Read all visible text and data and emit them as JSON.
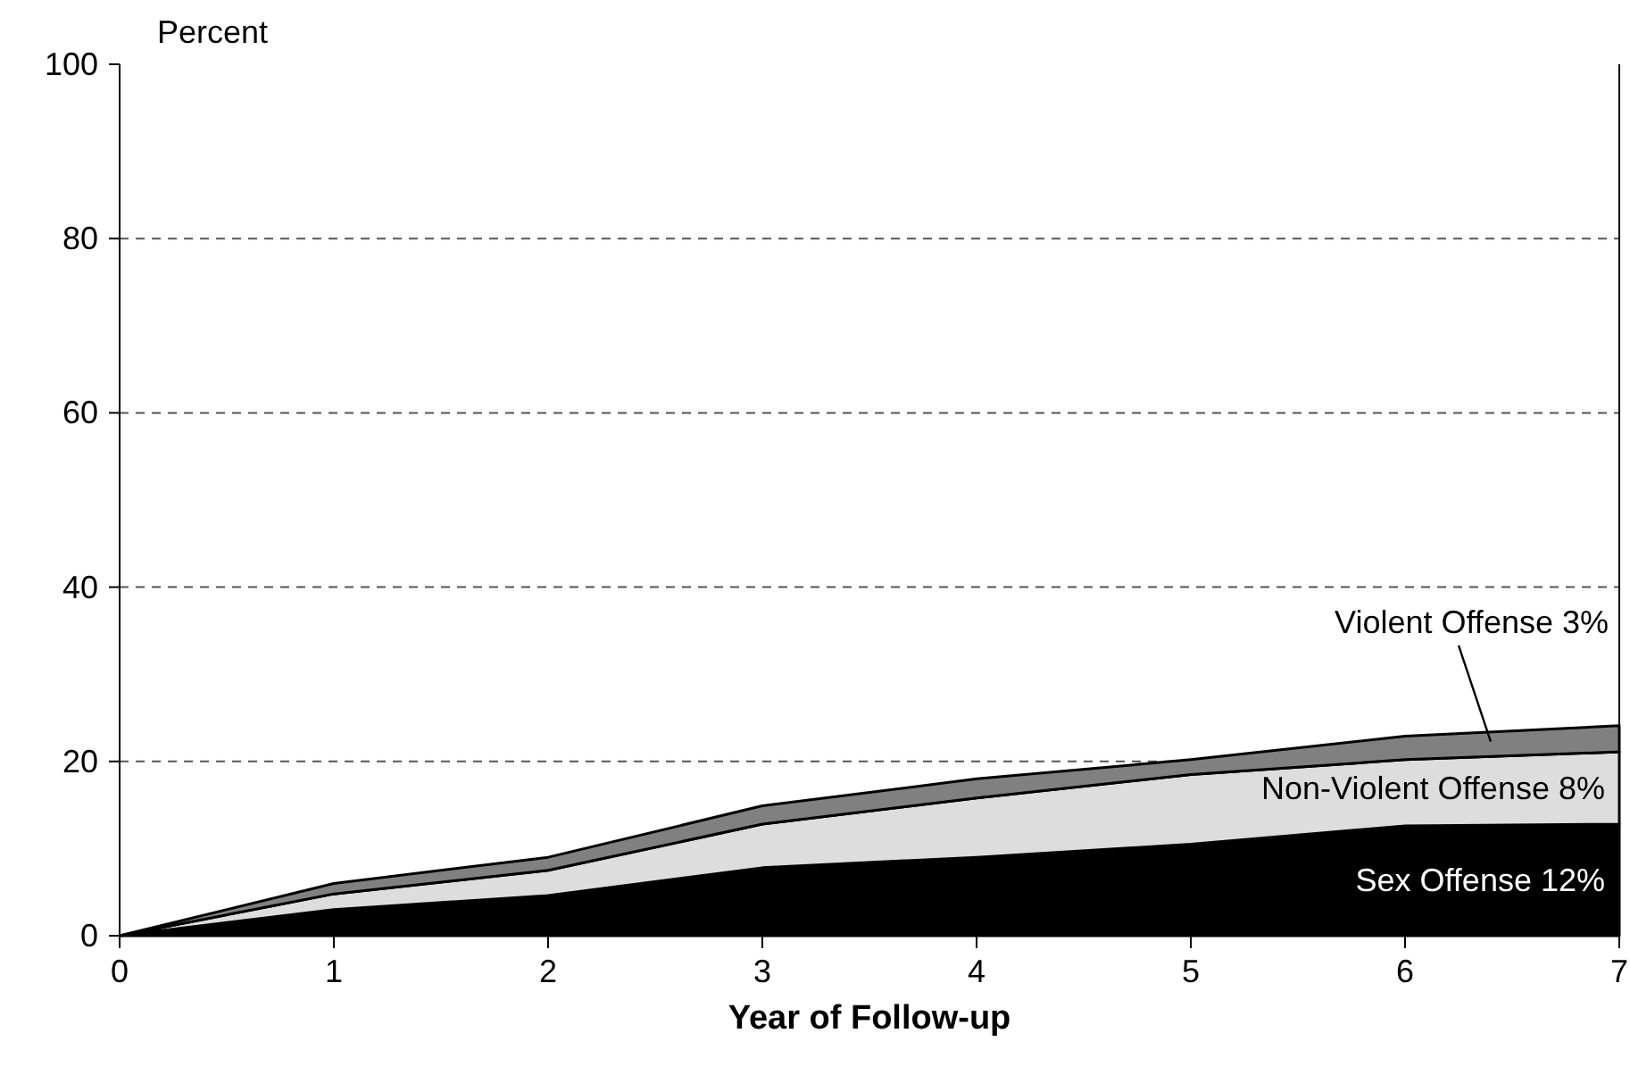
{
  "chart_data": {
    "type": "area",
    "stacked": true,
    "ylabel": "Percent",
    "xlabel": "Year of Follow-up",
    "x": [
      0,
      1,
      2,
      3,
      4,
      5,
      6,
      7
    ],
    "xlim": [
      0,
      7
    ],
    "xticks": [
      0,
      1,
      2,
      3,
      4,
      5,
      6,
      7
    ],
    "ylim": [
      0,
      100
    ],
    "yticks": [
      0,
      20,
      40,
      60,
      80,
      100
    ],
    "grid": "y",
    "series": [
      {
        "name": "Sex Offense 12%",
        "color": "#000000",
        "values": [
          0,
          3,
          4.6,
          7.8,
          9,
          10.5,
          12.6,
          12.8
        ]
      },
      {
        "name": "Non-Violent Offense 8%",
        "color": "#dddddd",
        "values": [
          0,
          1.8,
          2.9,
          5.0,
          6.8,
          8.0,
          7.6,
          8.3
        ]
      },
      {
        "name": "Violent Offense 3%",
        "color": "#808080",
        "values": [
          0,
          1.2,
          1.5,
          2.1,
          2.2,
          1.7,
          2.7,
          3.0
        ]
      }
    ]
  }
}
